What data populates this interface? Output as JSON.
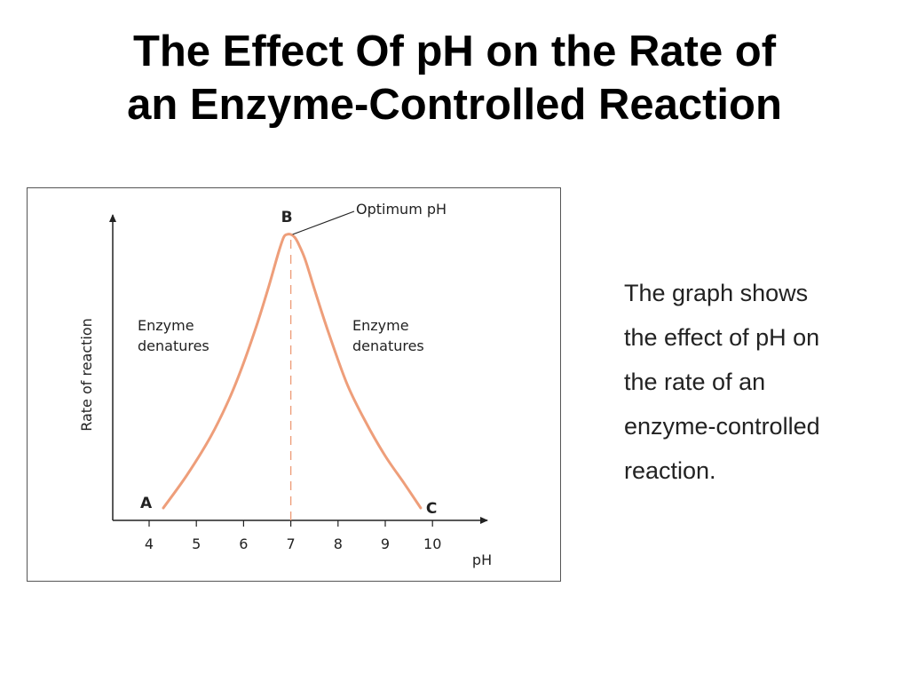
{
  "title": {
    "line1": "The Effect Of pH on the Rate of",
    "line2": "an Enzyme-Controlled Reaction"
  },
  "caption": {
    "lines": [
      "The graph shows",
      "the effect of pH on",
      "the rate of an",
      "enzyme-controlled",
      "reaction."
    ]
  },
  "colors": {
    "curve": "#ee9e7a",
    "axis": "#222222",
    "dashed_line": "#ee9e7a",
    "text": "#222222"
  },
  "chart_data": {
    "type": "line",
    "title": "",
    "xlabel": "pH",
    "ylabel": "Rate of reaction",
    "x_ticks": [
      4,
      5,
      6,
      7,
      8,
      9,
      10
    ],
    "xlim": [
      3.2,
      11.0
    ],
    "ylim": [
      0,
      1.05
    ],
    "y_ticks_shown": false,
    "grid": false,
    "legend": "none",
    "series": [
      {
        "x": [
          4.3,
          4.8,
          5.3,
          5.7,
          6.0,
          6.3,
          6.55,
          6.75,
          6.85,
          6.92,
          7.0,
          7.08,
          7.15,
          7.3,
          7.5,
          7.8,
          8.2,
          8.6,
          9.0,
          9.4,
          9.75
        ],
        "y": [
          0.0,
          0.12,
          0.26,
          0.4,
          0.53,
          0.68,
          0.82,
          0.94,
          0.99,
          1.0,
          1.0,
          0.99,
          0.97,
          0.91,
          0.8,
          0.64,
          0.45,
          0.31,
          0.19,
          0.09,
          0.0
        ]
      }
    ],
    "points": [
      {
        "label": "A",
        "x": 4.3,
        "y": 0.0
      },
      {
        "label": "B",
        "x": 7.0,
        "y": 1.0
      },
      {
        "label": "C",
        "x": 9.75,
        "y": 0.0
      }
    ],
    "annotations": [
      {
        "id": "optimum",
        "text": "Optimum pH"
      },
      {
        "id": "left-denature",
        "lines": [
          "Enzyme",
          "denatures"
        ]
      },
      {
        "id": "right-denature",
        "lines": [
          "Enzyme",
          "denatures"
        ]
      }
    ],
    "vertical_marker": {
      "x": 7,
      "style": "dashed"
    }
  }
}
